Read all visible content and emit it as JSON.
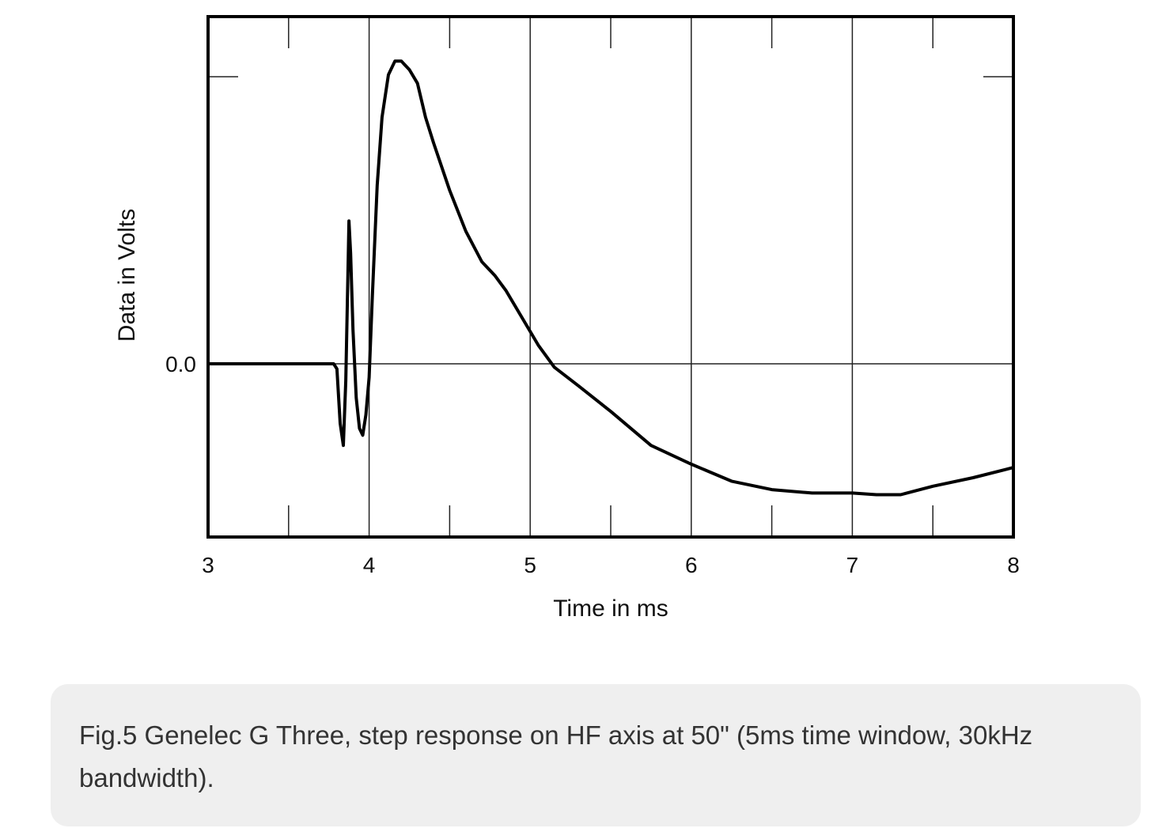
{
  "chart_data": {
    "type": "line",
    "title": "",
    "xlabel": "Time in ms",
    "ylabel": "Data in Volts",
    "xlim": [
      3,
      8
    ],
    "x_ticks": [
      "3",
      "4",
      "5",
      "6",
      "7",
      "8"
    ],
    "y_ticks": [
      "0.0"
    ],
    "ylim": [
      -1.0,
      2.0
    ],
    "grid": true,
    "series": [
      {
        "points": [
          [
            3.0,
            0.0
          ],
          [
            3.78,
            0.0
          ],
          [
            3.8,
            -0.03
          ],
          [
            3.82,
            -0.35
          ],
          [
            3.84,
            -0.48
          ],
          [
            3.855,
            -0.1
          ],
          [
            3.87,
            0.6
          ],
          [
            3.875,
            0.84
          ],
          [
            3.885,
            0.65
          ],
          [
            3.9,
            0.2
          ],
          [
            3.92,
            -0.2
          ],
          [
            3.94,
            -0.38
          ],
          [
            3.96,
            -0.42
          ],
          [
            3.98,
            -0.3
          ],
          [
            4.0,
            -0.08
          ],
          [
            4.02,
            0.4
          ],
          [
            4.05,
            1.05
          ],
          [
            4.08,
            1.45
          ],
          [
            4.12,
            1.7
          ],
          [
            4.16,
            1.78
          ],
          [
            4.2,
            1.78
          ],
          [
            4.25,
            1.73
          ],
          [
            4.3,
            1.65
          ],
          [
            4.35,
            1.45
          ],
          [
            4.4,
            1.3
          ],
          [
            4.5,
            1.02
          ],
          [
            4.6,
            0.78
          ],
          [
            4.7,
            0.6
          ],
          [
            4.78,
            0.52
          ],
          [
            4.85,
            0.43
          ],
          [
            4.95,
            0.27
          ],
          [
            5.05,
            0.11
          ],
          [
            5.15,
            -0.02
          ],
          [
            5.3,
            -0.13
          ],
          [
            5.5,
            -0.28
          ],
          [
            5.75,
            -0.48
          ],
          [
            6.0,
            -0.59
          ],
          [
            6.25,
            -0.69
          ],
          [
            6.5,
            -0.74
          ],
          [
            6.75,
            -0.76
          ],
          [
            7.0,
            -0.76
          ],
          [
            7.15,
            -0.77
          ],
          [
            7.3,
            -0.77
          ],
          [
            7.5,
            -0.72
          ],
          [
            7.75,
            -0.67
          ],
          [
            8.0,
            -0.61
          ]
        ]
      }
    ]
  },
  "caption": {
    "text": "Fig.5 Genelec G Three, step response on HF axis at 50\" (5ms time window, 30kHz bandwidth)."
  }
}
